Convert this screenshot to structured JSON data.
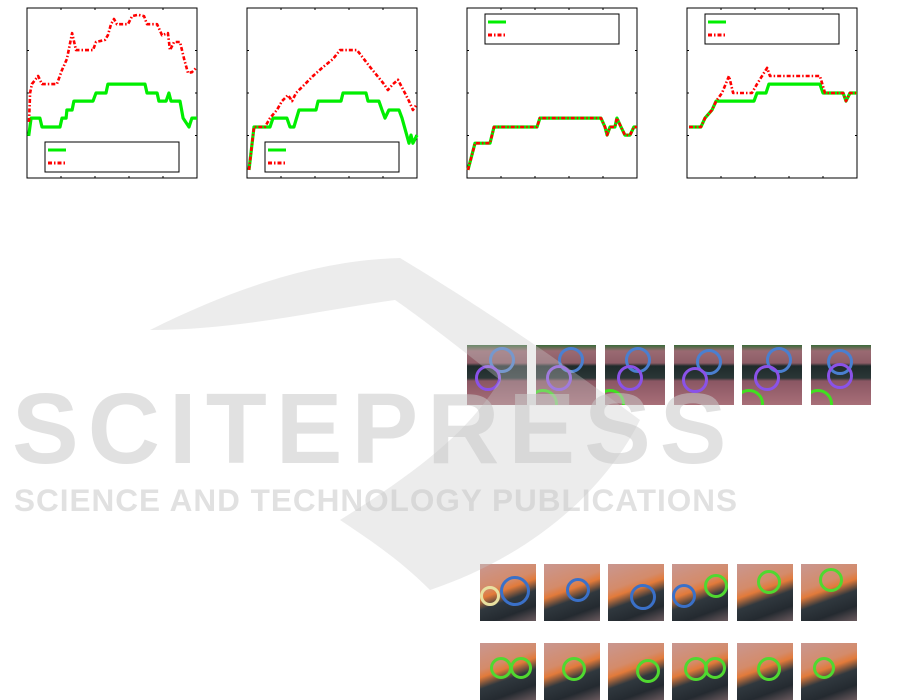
{
  "colors": {
    "series_a": "#00ee00",
    "series_b": "#ff0000",
    "watermark": "#c8c8c8"
  },
  "watermark": {
    "logo_text": "SCITEPRESS",
    "tagline": "SCIENCE AND TECHNOLOGY PUBLICATIONS"
  },
  "chart_data": [
    {
      "type": "line",
      "title": "",
      "xlabel": "",
      "ylabel": "",
      "xlim": [
        0,
        100
      ],
      "ylim": [
        0,
        4
      ],
      "grid": false,
      "legend": "bottom",
      "series": [
        {
          "style": "solid",
          "color": "#00ee00",
          "points": [
            [
              1,
              0.99
            ],
            [
              2.4,
              1.41
            ],
            [
              7.6,
              1.41
            ],
            [
              8.8,
              1.2
            ],
            [
              19.4,
              1.2
            ],
            [
              20.6,
              1.41
            ],
            [
              23,
              1.41
            ],
            [
              23.5,
              1.6
            ],
            [
              26.5,
              1.6
            ],
            [
              27.6,
              1.81
            ],
            [
              38.8,
              1.81
            ],
            [
              40.6,
              2.0
            ],
            [
              46.5,
              2.0
            ],
            [
              47.6,
              2.21
            ],
            [
              69.4,
              2.21
            ],
            [
              70.6,
              2.0
            ],
            [
              76.5,
              2.0
            ],
            [
              77.6,
              1.81
            ],
            [
              81.8,
              1.81
            ],
            [
              83.5,
              2.0
            ],
            [
              84.7,
              1.81
            ],
            [
              90,
              1.81
            ],
            [
              91.8,
              1.41
            ],
            [
              95.3,
              1.2
            ],
            [
              97,
              1.41
            ],
            [
              100,
              1.41
            ]
          ]
        },
        {
          "style": "dash-dot",
          "color": "#ff0000",
          "points": [
            [
              1.2,
              1.32
            ],
            [
              1.8,
              2.0
            ],
            [
              2.9,
              2.21
            ],
            [
              6.5,
              2.4
            ],
            [
              8.8,
              2.21
            ],
            [
              17.6,
              2.21
            ],
            [
              20.6,
              2.54
            ],
            [
              23.5,
              2.8
            ],
            [
              26.5,
              3.41
            ],
            [
              28.8,
              3.01
            ],
            [
              38.8,
              3.01
            ],
            [
              40.6,
              3.2
            ],
            [
              45.9,
              3.25
            ],
            [
              47.6,
              3.36
            ],
            [
              49.4,
              3.62
            ],
            [
              51.2,
              3.74
            ],
            [
              52.9,
              3.62
            ],
            [
              59.4,
              3.62
            ],
            [
              61.8,
              3.81
            ],
            [
              65.3,
              3.84
            ],
            [
              68.8,
              3.81
            ],
            [
              70.6,
              3.62
            ],
            [
              76.5,
              3.62
            ],
            [
              79.4,
              3.36
            ],
            [
              82.9,
              3.41
            ],
            [
              84.1,
              3.01
            ],
            [
              86.5,
              3.2
            ],
            [
              90,
              3.2
            ],
            [
              92.4,
              2.8
            ],
            [
              94.7,
              2.47
            ],
            [
              97,
              2.49
            ],
            [
              100,
              2.61
            ]
          ]
        }
      ]
    },
    {
      "type": "line",
      "title": "",
      "xlabel": "",
      "ylabel": "",
      "xlim": [
        0,
        100
      ],
      "ylim": [
        0,
        4
      ],
      "grid": false,
      "legend": "bottom",
      "series": [
        {
          "style": "solid",
          "color": "#00ee00",
          "points": [
            [
              1.2,
              0.19
            ],
            [
              4.1,
              1.2
            ],
            [
              13.5,
              1.2
            ],
            [
              15.3,
              1.41
            ],
            [
              23.5,
              1.41
            ],
            [
              25.3,
              1.2
            ],
            [
              27.6,
              1.2
            ],
            [
              30.6,
              1.6
            ],
            [
              40.6,
              1.6
            ],
            [
              41.8,
              1.81
            ],
            [
              55.3,
              1.81
            ],
            [
              56.5,
              2.0
            ],
            [
              70,
              2.0
            ],
            [
              71.2,
              1.81
            ],
            [
              77.6,
              1.81
            ],
            [
              79.4,
              1.6
            ],
            [
              81.2,
              1.41
            ],
            [
              83.5,
              1.6
            ],
            [
              89.4,
              1.6
            ],
            [
              91.2,
              1.41
            ],
            [
              95.3,
              0.82
            ],
            [
              96.5,
              1.01
            ],
            [
              97.6,
              0.82
            ],
            [
              100,
              1.01
            ]
          ]
        },
        {
          "style": "dash-dot",
          "color": "#ff0000",
          "points": [
            [
              1.2,
              0.19
            ],
            [
              4.1,
              1.2
            ],
            [
              10.6,
              1.2
            ],
            [
              13.5,
              1.41
            ],
            [
              17.6,
              1.6
            ],
            [
              20.6,
              1.81
            ],
            [
              24.1,
              1.95
            ],
            [
              26.5,
              1.81
            ],
            [
              28.8,
              2.0
            ],
            [
              34.1,
              2.21
            ],
            [
              38.8,
              2.4
            ],
            [
              44.7,
              2.61
            ],
            [
              50.6,
              2.8
            ],
            [
              54.7,
              3.01
            ],
            [
              64.7,
              3.01
            ],
            [
              72.4,
              2.61
            ],
            [
              80.6,
              2.21
            ],
            [
              82.9,
              2.07
            ],
            [
              85.9,
              2.21
            ],
            [
              88.8,
              2.31
            ],
            [
              92.9,
              2.0
            ],
            [
              95.3,
              1.81
            ],
            [
              97.6,
              1.6
            ],
            [
              100,
              1.74
            ]
          ]
        }
      ]
    },
    {
      "type": "line",
      "title": "",
      "xlabel": "",
      "ylabel": "",
      "xlim": [
        0,
        100
      ],
      "ylim": [
        0,
        4
      ],
      "grid": false,
      "legend": "top",
      "series": [
        {
          "style": "solid",
          "color": "#00ee00",
          "points": [
            [
              0.6,
              0.19
            ],
            [
              4.7,
              0.82
            ],
            [
              13.5,
              0.82
            ],
            [
              15.9,
              1.2
            ],
            [
              41.2,
              1.2
            ],
            [
              42.9,
              1.41
            ],
            [
              78.8,
              1.41
            ],
            [
              81.2,
              1.2
            ],
            [
              82.4,
              1.01
            ],
            [
              84.1,
              1.2
            ],
            [
              87,
              1.2
            ],
            [
              88.2,
              1.41
            ],
            [
              90.6,
              1.2
            ],
            [
              92.9,
              1.01
            ],
            [
              95.9,
              1.01
            ],
            [
              98.2,
              1.2
            ],
            [
              100,
              1.2
            ]
          ]
        },
        {
          "style": "dash-dot",
          "color": "#ff0000",
          "points": [
            [
              0.6,
              0.19
            ],
            [
              4.7,
              0.82
            ],
            [
              13.5,
              0.82
            ],
            [
              15.9,
              1.2
            ],
            [
              41.2,
              1.2
            ],
            [
              42.9,
              1.41
            ],
            [
              78.8,
              1.41
            ],
            [
              81.2,
              1.2
            ],
            [
              82.4,
              1.01
            ],
            [
              84.1,
              1.2
            ],
            [
              87,
              1.2
            ],
            [
              88.2,
              1.41
            ],
            [
              90.6,
              1.2
            ],
            [
              92.9,
              1.01
            ],
            [
              95.9,
              1.01
            ],
            [
              98.2,
              1.2
            ],
            [
              100,
              1.2
            ]
          ]
        }
      ]
    },
    {
      "type": "line",
      "title": "",
      "xlabel": "",
      "ylabel": "",
      "xlim": [
        0,
        100
      ],
      "ylim": [
        0,
        4
      ],
      "grid": false,
      "legend": "top",
      "series": [
        {
          "style": "solid",
          "color": "#00ee00",
          "points": [
            [
              1.2,
              1.2
            ],
            [
              8.2,
              1.2
            ],
            [
              10.6,
              1.41
            ],
            [
              14.7,
              1.6
            ],
            [
              17.1,
              1.81
            ],
            [
              39.4,
              1.81
            ],
            [
              41.2,
              2.0
            ],
            [
              46.5,
              2.0
            ],
            [
              48.2,
              2.21
            ],
            [
              78.2,
              2.21
            ],
            [
              80,
              2.0
            ],
            [
              91.8,
              2.0
            ],
            [
              93.5,
              1.81
            ],
            [
              95.9,
              2.0
            ],
            [
              100,
              2.0
            ]
          ]
        },
        {
          "style": "dash-dot",
          "color": "#ff0000",
          "points": [
            [
              1.2,
              1.2
            ],
            [
              8.2,
              1.2
            ],
            [
              10.6,
              1.41
            ],
            [
              14.7,
              1.6
            ],
            [
              17.1,
              1.81
            ],
            [
              20.6,
              2.0
            ],
            [
              24.7,
              2.4
            ],
            [
              27.1,
              2.0
            ],
            [
              38.2,
              2.0
            ],
            [
              41.2,
              2.21
            ],
            [
              47.1,
              2.59
            ],
            [
              48.8,
              2.4
            ],
            [
              78.2,
              2.4
            ],
            [
              81.2,
              2.0
            ],
            [
              91.8,
              2.0
            ],
            [
              93.5,
              1.81
            ],
            [
              95.9,
              2.0
            ],
            [
              100,
              2.0
            ]
          ]
        }
      ]
    }
  ]
}
